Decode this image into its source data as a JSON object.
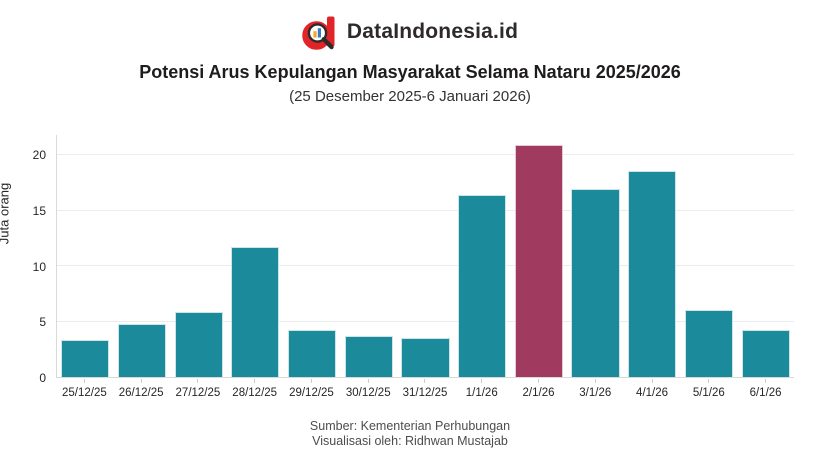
{
  "header": {
    "brand": "DataIndonesia.id",
    "title": "Potensi Arus Kepulangan Masyarakat Selama Nataru 2025/2026",
    "subtitle": "(25 Desember 2025-6 Januari 2026)",
    "logo_colors": {
      "letter_red": "#e02428",
      "magnifier_dark": "#2d2a2b",
      "mini_bar_orange": "#f5a623",
      "mini_bar_blue": "#3a7bbf"
    }
  },
  "chart_data": {
    "type": "bar",
    "title": "Potensi Arus Kepulangan Masyarakat Selama Nataru 2025/2026",
    "subtitle": "(25 Desember 2025-6 Januari 2026)",
    "categories": [
      "25/12/25",
      "26/12/25",
      "27/12/25",
      "28/12/25",
      "29/12/25",
      "30/12/25",
      "31/12/25",
      "1/1/26",
      "2/1/26",
      "3/1/26",
      "4/1/26",
      "5/1/26",
      "6/1/26"
    ],
    "values": [
      3.3,
      4.8,
      5.9,
      11.7,
      4.2,
      3.7,
      3.5,
      16.4,
      20.9,
      16.9,
      18.6,
      6.0,
      4.2
    ],
    "highlight_index": 8,
    "xlabel": "",
    "ylabel": "Juta orang",
    "ylim": [
      0,
      21.8
    ],
    "yticks": [
      0,
      5,
      10,
      15,
      20
    ],
    "grid": true,
    "legend": false,
    "appearance": {
      "bar_color": "#1b8a9b",
      "bar_edge_color": "#cde4e9",
      "highlight_color": "#a03a5e",
      "highlight_edge_color": "#e6c9d4",
      "grid_color": "#ececec",
      "axis_color": "#d9d9d9"
    }
  },
  "footer": {
    "source": "Sumber: Kementerian Perhubungan",
    "credit": "Visualisasi oleh: Ridhwan Mustajab"
  }
}
